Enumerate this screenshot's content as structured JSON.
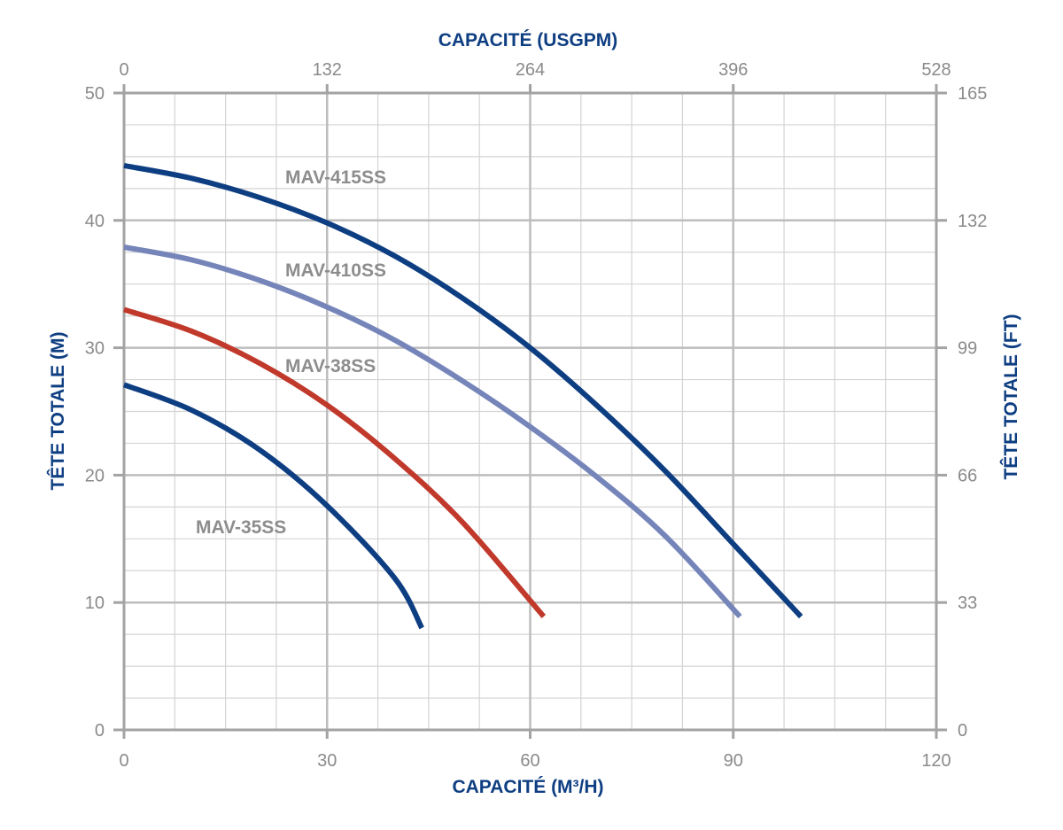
{
  "chart_data": {
    "type": "line",
    "x_axis_bottom": {
      "label": "CAPACITÉ (M³/H)",
      "range": [
        0,
        120
      ],
      "ticks": [
        "0",
        "30",
        "60",
        "90",
        "120"
      ]
    },
    "x_axis_top": {
      "label": "CAPACITÉ (USGPM)",
      "range": [
        0,
        528
      ],
      "ticks": [
        "0",
        "132",
        "264",
        "396",
        "528"
      ]
    },
    "y_axis_left": {
      "label": "TÊTE TOTALE (M)",
      "range": [
        0,
        50
      ],
      "ticks": [
        "0",
        "10",
        "20",
        "30",
        "40",
        "50"
      ]
    },
    "y_axis_right": {
      "label": "TÊTE TOTALE (FT)",
      "range": [
        0,
        165
      ],
      "ticks": [
        "0",
        "33",
        "66",
        "99",
        "132",
        "165"
      ]
    },
    "grid": true,
    "series": [
      {
        "name": "MAV-415SS",
        "color": "#0e3e82",
        "points": [
          [
            0,
            44.3
          ],
          [
            10,
            43.3
          ],
          [
            20,
            41.8
          ],
          [
            30,
            39.8
          ],
          [
            40,
            37.2
          ],
          [
            50,
            33.9
          ],
          [
            60,
            30.0
          ],
          [
            70,
            25.4
          ],
          [
            80,
            20.3
          ],
          [
            90,
            14.6
          ],
          [
            100,
            8.9
          ]
        ]
      },
      {
        "name": "MAV-410SS",
        "color": "#7585ba",
        "points": [
          [
            0,
            37.9
          ],
          [
            10,
            36.9
          ],
          [
            20,
            35.3
          ],
          [
            30,
            33.2
          ],
          [
            40,
            30.6
          ],
          [
            50,
            27.4
          ],
          [
            60,
            23.8
          ],
          [
            70,
            19.8
          ],
          [
            80,
            15.2
          ],
          [
            91,
            8.9
          ]
        ]
      },
      {
        "name": "MAV-38SS",
        "color": "#c0392b",
        "points": [
          [
            0,
            33.0
          ],
          [
            10,
            31.3
          ],
          [
            20,
            28.8
          ],
          [
            30,
            25.5
          ],
          [
            40,
            21.3
          ],
          [
            50,
            16.3
          ],
          [
            62,
            8.9
          ]
        ]
      },
      {
        "name": "MAV-35SS",
        "color": "#0e3e82",
        "points": [
          [
            0,
            27.1
          ],
          [
            10,
            25.1
          ],
          [
            20,
            22.0
          ],
          [
            30,
            17.6
          ],
          [
            40,
            11.9
          ],
          [
            44,
            8.0
          ]
        ]
      }
    ]
  }
}
